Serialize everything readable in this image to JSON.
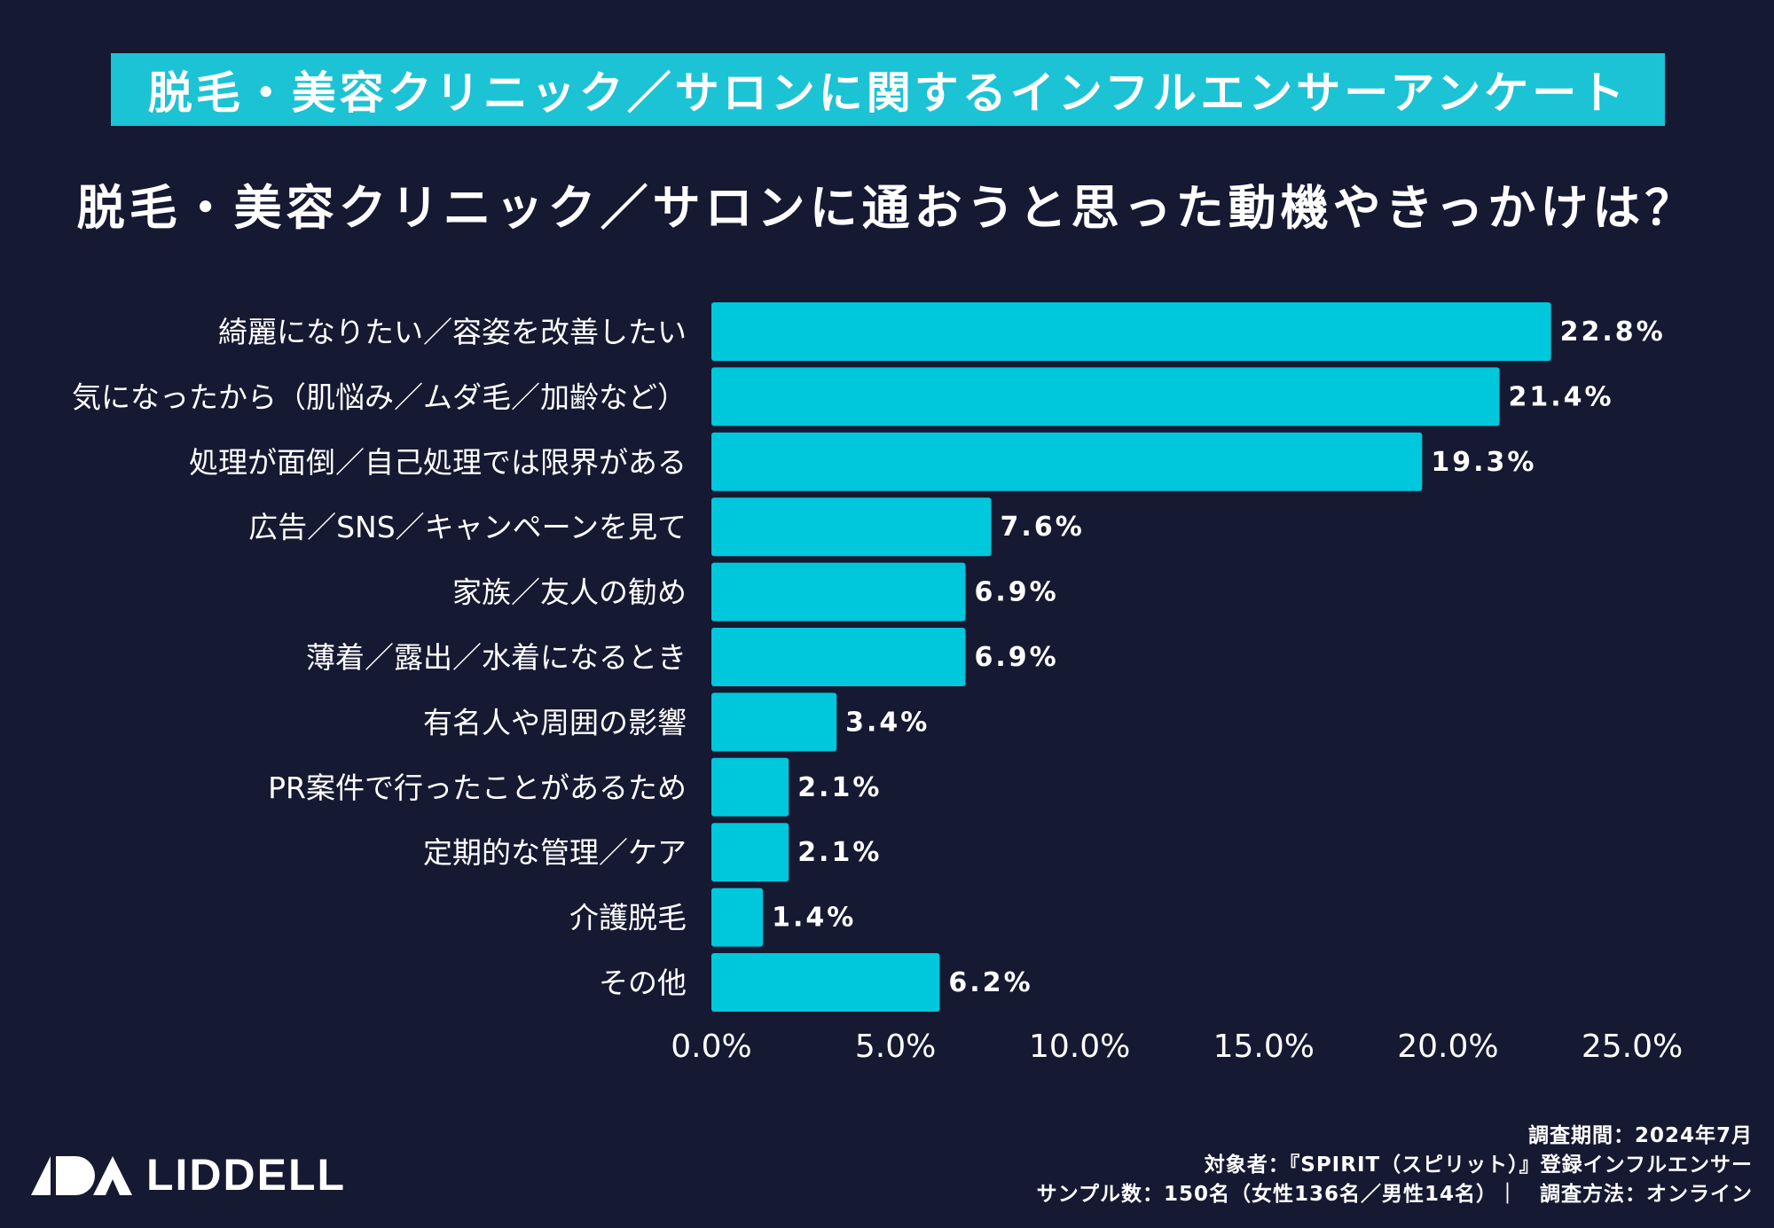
{
  "banner": {
    "text": "脱毛・美容クリニック／サロンに関するインフルエンサーアンケート"
  },
  "question": {
    "text": "脱毛・美容クリニック／サロンに通おうと思った動機やきっかけは？"
  },
  "colors": {
    "background": "#151932",
    "bar": "#00c8dc",
    "banner": "#1cc3d4",
    "text": "#ffffff"
  },
  "chart_data": {
    "type": "bar",
    "orientation": "horizontal",
    "title": "脱毛・美容クリニック／サロンに通おうと思った動機やきっかけは？",
    "categories": [
      "綺麗になりたい／容姿を改善したい",
      "気になったから（肌悩み／ムダ毛／加齢など）",
      "処理が面倒／自己処理では限界がある",
      "広告／SNS／キャンペーンを見て",
      "家族／友人の勧め",
      "薄着／露出／水着になるとき",
      "有名人や周囲の影響",
      "PR案件で行ったことがあるため",
      "定期的な管理／ケア",
      "介護脱毛",
      "その他"
    ],
    "values": [
      22.8,
      21.4,
      19.3,
      7.6,
      6.9,
      6.9,
      3.4,
      2.1,
      2.1,
      1.4,
      6.2
    ],
    "value_labels": [
      "22.8%",
      "21.4%",
      "19.3%",
      "7.6%",
      "6.9%",
      "6.9%",
      "3.4%",
      "2.1%",
      "2.1%",
      "1.4%",
      "6.2%"
    ],
    "x_ticks": [
      0,
      5,
      10,
      15,
      20,
      25
    ],
    "x_tick_labels": [
      "0.0%",
      "5.0%",
      "10.0%",
      "15.0%",
      "20.0%",
      "25.0%"
    ],
    "xlim": [
      0,
      25
    ],
    "xlabel": "",
    "ylabel": "",
    "grid": false,
    "legend": "none"
  },
  "logo": {
    "text": "LIDDELL"
  },
  "footer": {
    "line1": "調査期間：2024年7月",
    "line2": "対象者：『SPIRIT（スピリット）』登録インフルエンサー",
    "line3": "サンプル数：150名（女性136名／男性14名）｜　調査方法：オンライン"
  }
}
